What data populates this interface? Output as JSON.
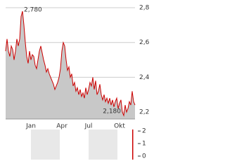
{
  "chart_data": [
    {
      "type": "area",
      "color": "#cc0000",
      "fill": "#c8c8c8",
      "grid": true,
      "categories": [
        null,
        null,
        null,
        null,
        null,
        null,
        null,
        null,
        null,
        null,
        null,
        null,
        null,
        null,
        null,
        null,
        null,
        null,
        "Jan",
        null,
        null,
        null,
        null,
        null,
        null,
        null,
        null,
        null,
        null,
        null,
        null,
        null,
        null,
        null,
        null,
        null,
        null,
        null,
        null,
        null,
        "Apr",
        null,
        null,
        null,
        null,
        null,
        null,
        null,
        null,
        null,
        null,
        null,
        null,
        null,
        null,
        null,
        null,
        null,
        null,
        "Jul",
        null,
        null,
        null,
        null,
        null,
        null,
        null,
        null,
        null,
        null,
        null,
        null,
        null,
        null,
        null,
        null,
        null,
        null,
        null,
        null,
        null,
        "Okt",
        null,
        null,
        null,
        null,
        null,
        null,
        null,
        null,
        null,
        null,
        null
      ],
      "values": [
        2.55,
        2.62,
        2.55,
        2.52,
        2.58,
        2.56,
        2.5,
        2.55,
        2.62,
        2.58,
        2.62,
        2.75,
        2.78,
        2.7,
        2.6,
        2.52,
        2.48,
        2.55,
        2.5,
        2.53,
        2.52,
        2.47,
        2.45,
        2.5,
        2.55,
        2.58,
        2.54,
        2.5,
        2.47,
        2.43,
        2.45,
        2.42,
        2.4,
        2.38,
        2.36,
        2.33,
        2.35,
        2.37,
        2.4,
        2.45,
        2.55,
        2.6,
        2.58,
        2.5,
        2.44,
        2.46,
        2.4,
        2.42,
        2.35,
        2.37,
        2.32,
        2.34,
        2.3,
        2.33,
        2.29,
        2.31,
        2.28,
        2.34,
        2.3,
        2.33,
        2.37,
        2.35,
        2.4,
        2.33,
        2.38,
        2.3,
        2.32,
        2.36,
        2.3,
        2.27,
        2.3,
        2.26,
        2.28,
        2.25,
        2.28,
        2.24,
        2.27,
        2.23,
        2.26,
        2.28,
        2.22,
        2.25,
        2.27,
        2.2,
        2.18,
        2.24,
        2.2,
        2.22,
        2.26,
        2.24,
        2.32,
        2.26,
        2.24
      ],
      "max_label": "2,780",
      "min_label": "2,180",
      "ylim": [
        2.16,
        2.8
      ],
      "yticks": [
        {
          "value": 2.2,
          "label": "2,2"
        },
        {
          "value": 2.4,
          "label": "2,4"
        },
        {
          "value": 2.6,
          "label": "2,6"
        },
        {
          "value": 2.8,
          "label": "2,8"
        }
      ]
    },
    {
      "type": "bar",
      "color": "#cc0000",
      "values": [
        2.4
      ],
      "ylim": [
        0,
        2.4
      ],
      "yticks": [
        0,
        1,
        2
      ]
    }
  ]
}
